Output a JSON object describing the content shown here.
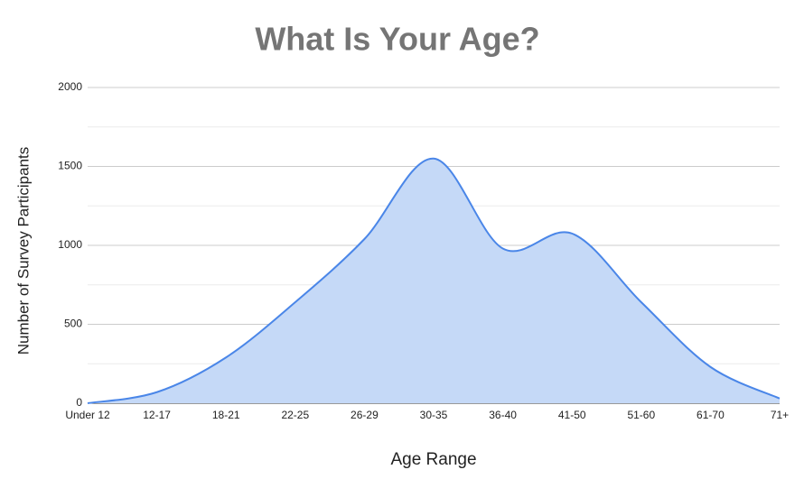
{
  "chart_data": {
    "type": "area",
    "title": "What Is Your Age?",
    "x_label": "Age Range",
    "y_label": "Number of Survey Participants",
    "categories": [
      "Under 12",
      "12-17",
      "18-21",
      "22-25",
      "26-29",
      "30-35",
      "36-40",
      "41-50",
      "51-60",
      "61-70",
      "71+"
    ],
    "values": [
      0,
      70,
      290,
      640,
      1040,
      1550,
      980,
      1075,
      640,
      230,
      30
    ],
    "color": "#4a86e8",
    "fill": "#c5d9f7",
    "ylim": [
      0,
      2000
    ],
    "yticks": [
      0,
      500,
      1000,
      1500,
      2000
    ],
    "grid": true,
    "minor_grid": true,
    "smooth": true
  }
}
